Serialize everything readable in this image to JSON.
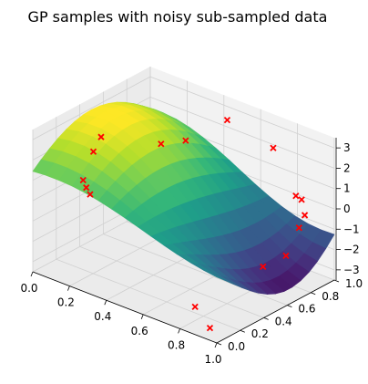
{
  "chart_data": {
    "type": "surface3d",
    "title": "GP samples with noisy sub-sampled data",
    "xlabel": "",
    "ylabel": "",
    "zlabel": "",
    "xlim": [
      0,
      1
    ],
    "ylim": [
      0,
      1
    ],
    "zlim": [
      -3.5,
      3.5
    ],
    "x_ticks": [
      "0.0",
      "0.2",
      "0.4",
      "0.6",
      "0.8",
      "1.0"
    ],
    "y_ticks": [
      "0.0",
      "0.2",
      "0.4",
      "0.6",
      "0.8",
      "1.0"
    ],
    "z_ticks": [
      "3",
      "2",
      "1",
      "0",
      "−1",
      "−2",
      "−3"
    ],
    "grid": true,
    "colormap": "viridis",
    "surface": "GP sample over grid [0,1]×[0,1], values roughly -3 to 3",
    "scatter": {
      "marker": "x",
      "color": "#ff0000",
      "points": [
        {
          "x": 0.02,
          "y": 0.55,
          "z": 1.5
        },
        {
          "x": 0.01,
          "y": 0.5,
          "z": 0.9
        },
        {
          "x": 0.05,
          "y": 0.35,
          "z": 0.1
        },
        {
          "x": 0.08,
          "y": 0.33,
          "z": -0.1
        },
        {
          "x": 0.12,
          "y": 0.3,
          "z": -0.2
        },
        {
          "x": 0.25,
          "y": 0.7,
          "z": 1.5
        },
        {
          "x": 0.32,
          "y": 0.8,
          "z": 1.6
        },
        {
          "x": 0.45,
          "y": 0.95,
          "z": 2.6
        },
        {
          "x": 0.7,
          "y": 0.95,
          "z": 2.1
        },
        {
          "x": 0.95,
          "y": 0.8,
          "z": 0.9
        },
        {
          "x": 0.97,
          "y": 0.72,
          "z": 1.4
        },
        {
          "x": 1.0,
          "y": 0.7,
          "z": 0.0
        },
        {
          "x": 0.98,
          "y": 0.62,
          "z": -1.2
        },
        {
          "x": 0.9,
          "y": 0.55,
          "z": -1.8
        },
        {
          "x": 0.98,
          "y": 0.78,
          "z": 0.3
        },
        {
          "x": 0.85,
          "y": 0.05,
          "z": -2.4
        },
        {
          "x": 0.95,
          "y": 0.02,
          "z": -3.0
        }
      ]
    }
  },
  "colors": {
    "pane_back": "#f2f2f2",
    "pane_side": "#ebebeb",
    "grid": "#d0d0d0",
    "scatter": "#ff0000"
  }
}
